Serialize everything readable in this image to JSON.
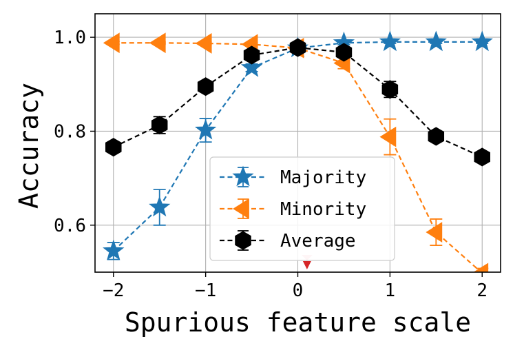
{
  "chart_data": {
    "type": "line",
    "title": "",
    "xlabel": "Spurious feature scale",
    "ylabel": "Accuracy",
    "xlim": [
      -2.2,
      2.2
    ],
    "ylim": [
      0.5,
      1.05
    ],
    "xticks": [
      -2,
      -1,
      0,
      1,
      2
    ],
    "xtick_labels": [
      "−2",
      "−1",
      "0",
      "1",
      "2"
    ],
    "yticks": [
      0.6,
      0.8,
      1.0
    ],
    "ytick_labels": [
      "0.6",
      "0.8",
      "1.0"
    ],
    "grid": true,
    "legend_position": "lower-center",
    "x": [
      -2,
      -1.5,
      -1,
      -0.5,
      0,
      0.5,
      1,
      1.5,
      2
    ],
    "series": [
      {
        "name": "Majority",
        "color": "#1f77b4",
        "marker": "star",
        "values": [
          0.545,
          0.638,
          0.802,
          0.935,
          0.977,
          0.988,
          0.99,
          0.99,
          0.99
        ],
        "errors": [
          0.018,
          0.038,
          0.025,
          0.008,
          0.006,
          0.004,
          0.003,
          0.003,
          0.003
        ]
      },
      {
        "name": "Minority",
        "color": "#ff7f0e",
        "marker": "triangle-left",
        "values": [
          0.988,
          0.988,
          0.987,
          0.985,
          0.977,
          0.945,
          0.788,
          0.585,
          0.498
        ],
        "errors": [
          0.003,
          0.003,
          0.003,
          0.004,
          0.006,
          0.012,
          0.038,
          0.028,
          0.01
        ]
      },
      {
        "name": "Average",
        "color": "#000000",
        "marker": "hexagon",
        "values": [
          0.766,
          0.813,
          0.895,
          0.962,
          0.978,
          0.968,
          0.889,
          0.789,
          0.745
        ],
        "errors": [
          0.006,
          0.018,
          0.01,
          0.006,
          0.004,
          0.008,
          0.017,
          0.008,
          0.006
        ]
      }
    ],
    "annotations": [
      {
        "type": "marker",
        "shape": "triangle-down",
        "x": 0.1,
        "color": "#d62728"
      }
    ]
  }
}
